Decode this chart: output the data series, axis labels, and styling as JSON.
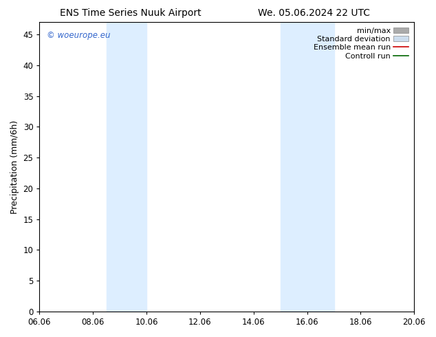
{
  "title_left": "ENS Time Series Nuuk Airport",
  "title_right": "We. 05.06.2024 22 UTC",
  "ylabel": "Precipitation (mm/6h)",
  "xlim": [
    0,
    14
  ],
  "ylim": [
    0,
    47
  ],
  "xtick_positions": [
    0,
    2,
    4,
    6,
    8,
    10,
    12,
    14
  ],
  "xtick_labels": [
    "06.06",
    "08.06",
    "10.06",
    "12.06",
    "14.06",
    "16.06",
    "18.06",
    "20.06"
  ],
  "ytick_positions": [
    0,
    5,
    10,
    15,
    20,
    25,
    30,
    35,
    40,
    45
  ],
  "ytick_labels": [
    "0",
    "5",
    "10",
    "15",
    "20",
    "25",
    "30",
    "35",
    "40",
    "45"
  ],
  "shaded_bands": [
    {
      "x_start": 2.5,
      "x_end": 4.0
    },
    {
      "x_start": 9.0,
      "x_end": 11.0
    }
  ],
  "shade_color": "#ddeeff",
  "watermark": "© woeurope.eu",
  "watermark_color": "#3366cc",
  "legend_items": [
    {
      "label": "min/max",
      "color": "#aaaaaa",
      "style": "span"
    },
    {
      "label": "Standard deviation",
      "color": "#ccddee",
      "style": "span"
    },
    {
      "label": "Ensemble mean run",
      "color": "#cc0000",
      "style": "line"
    },
    {
      "label": "Controll run",
      "color": "#006600",
      "style": "line"
    }
  ],
  "background_color": "#ffffff",
  "title_fontsize": 10,
  "label_fontsize": 9,
  "tick_fontsize": 8.5,
  "legend_fontsize": 8
}
